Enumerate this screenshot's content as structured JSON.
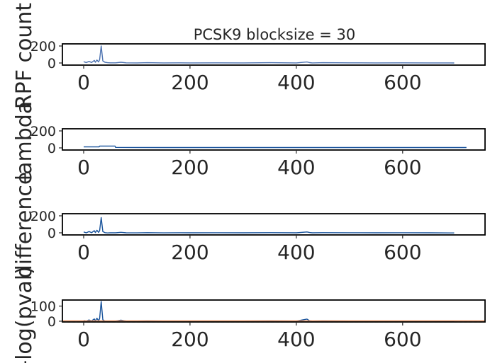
{
  "chart_data": [
    {
      "type": "line",
      "title": "PCSK9  blocksize = 30",
      "ylabel": "RPF count",
      "xlim": [
        -40,
        755
      ],
      "ylim": [
        -25,
        225
      ],
      "xticks": [
        "0",
        "200",
        "400",
        "600"
      ],
      "yticks": [
        "0",
        "200"
      ],
      "series": [
        {
          "color": "#4c72b0",
          "x": [
            0,
            5,
            10,
            15,
            20,
            22,
            25,
            28,
            30,
            33,
            36,
            40,
            45,
            50,
            60,
            70,
            80,
            100,
            120,
            150,
            180,
            200,
            250,
            300,
            350,
            400,
            420,
            425,
            430,
            450,
            500,
            550,
            600,
            650,
            697
          ],
          "y": [
            15,
            5,
            18,
            6,
            30,
            8,
            35,
            12,
            40,
            200,
            25,
            8,
            3,
            2,
            2,
            8,
            2,
            1,
            3,
            1,
            2,
            1,
            2,
            1,
            3,
            1,
            12,
            4,
            1,
            3,
            2,
            1,
            2,
            1,
            0
          ]
        }
      ]
    },
    {
      "type": "line",
      "ylabel": "lambda",
      "xlim": [
        -40,
        755
      ],
      "ylim": [
        -25,
        225
      ],
      "xticks": [
        "0",
        "200",
        "400",
        "600"
      ],
      "yticks": [
        "0",
        "200"
      ],
      "series": [
        {
          "color": "#16519a",
          "x": [
            0,
            29,
            30,
            59,
            60,
            90,
            150,
            200,
            300,
            400,
            500,
            600,
            720
          ],
          "y": [
            12,
            12,
            22,
            22,
            6,
            5,
            4,
            4,
            4,
            4,
            4,
            4,
            4
          ]
        }
      ]
    },
    {
      "type": "line",
      "ylabel": "difference",
      "xlim": [
        -40,
        755
      ],
      "ylim": [
        -25,
        225
      ],
      "xticks": [
        "0",
        "200",
        "400",
        "600"
      ],
      "yticks": [
        "0",
        "200"
      ],
      "series": [
        {
          "color": "#16519a",
          "x": [
            0,
            5,
            10,
            15,
            20,
            22,
            25,
            28,
            30,
            33,
            36,
            40,
            45,
            50,
            60,
            70,
            80,
            100,
            120,
            150,
            180,
            200,
            250,
            300,
            350,
            400,
            420,
            425,
            430,
            450,
            500,
            550,
            600,
            650,
            697
          ],
          "y": [
            10,
            0,
            15,
            2,
            25,
            3,
            30,
            5,
            25,
            180,
            15,
            2,
            -2,
            0,
            0,
            6,
            0,
            -1,
            2,
            -1,
            1,
            0,
            1,
            0,
            2,
            0,
            10,
            3,
            0,
            2,
            1,
            0,
            1,
            0,
            -2
          ]
        }
      ]
    },
    {
      "type": "line",
      "ylabel": "-log(pval)",
      "xlim": [
        -40,
        755
      ],
      "ylim": [
        -5,
        140
      ],
      "xticks": [
        "0",
        "200",
        "400",
        "600"
      ],
      "yticks": [
        "0",
        "100"
      ],
      "threshold": 2,
      "series": [
        {
          "color": "#16519a",
          "x": [
            0,
            5,
            10,
            15,
            20,
            22,
            25,
            28,
            30,
            33,
            36,
            40,
            45,
            50,
            60,
            70,
            80,
            100,
            120,
            150,
            180,
            200,
            250,
            300,
            350,
            400,
            420,
            425,
            430,
            450,
            500,
            550,
            600,
            650,
            697
          ],
          "y": [
            5,
            1,
            8,
            2,
            15,
            2,
            20,
            3,
            18,
            130,
            10,
            1,
            1,
            1,
            1,
            7,
            1,
            1,
            2,
            1,
            1,
            1,
            1,
            1,
            2,
            1,
            14,
            3,
            1,
            2,
            1,
            1,
            1,
            1,
            0
          ]
        }
      ]
    }
  ]
}
